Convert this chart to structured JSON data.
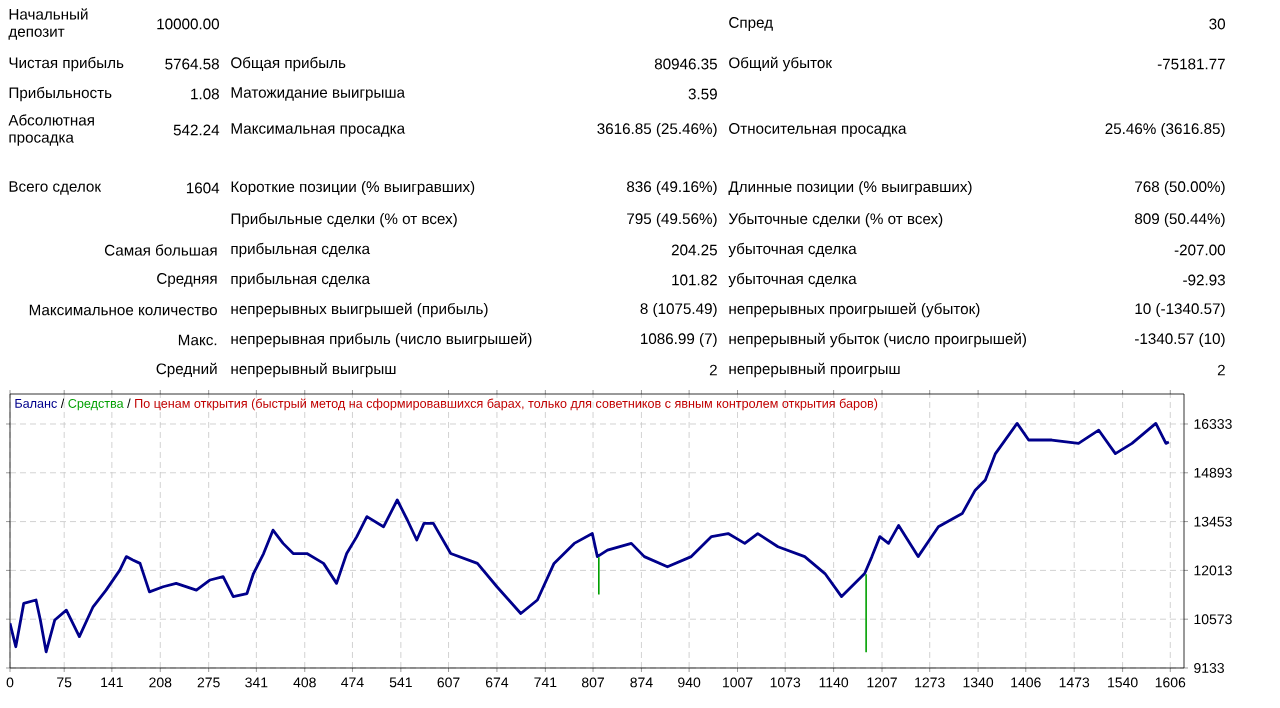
{
  "chart_data": {
    "type": "line",
    "series": [
      {
        "name": "Баланс",
        "color": "#00008b",
        "x": [
          0,
          8,
          19,
          36,
          42,
          50,
          62,
          78,
          96,
          115,
          133,
          152,
          161,
          170,
          180,
          193,
          212,
          230,
          258,
          277,
          295,
          309,
          328,
          337,
          351,
          364,
          378,
          392,
          411,
          434,
          452,
          466,
          480,
          494,
          517,
          536,
          550,
          563,
          573,
          586,
          610,
          647,
          674,
          707,
          730,
          753,
          781,
          806,
          813,
          827,
          860,
          878,
          910,
          943,
          971,
          994,
          1017,
          1035,
          1063,
          1100,
          1128,
          1151,
          1183,
          1193,
          1204,
          1216,
          1230,
          1257,
          1285,
          1318,
          1336,
          1350,
          1364,
          1394,
          1410,
          1442,
          1479,
          1507,
          1530,
          1553,
          1586,
          1600,
          1604
        ],
        "values": [
          10450,
          9760,
          11040,
          11140,
          10550,
          9610,
          10550,
          10840,
          10060,
          10940,
          11430,
          12020,
          12420,
          12320,
          12220,
          11380,
          11530,
          11630,
          11430,
          11730,
          11830,
          11240,
          11330,
          11920,
          12510,
          13200,
          12810,
          12510,
          12510,
          12220,
          11630,
          12510,
          13010,
          13600,
          13300,
          14090,
          13500,
          12910,
          13400,
          13400,
          12510,
          12220,
          11530,
          10740,
          11140,
          12220,
          12810,
          13100,
          12420,
          12610,
          12810,
          12420,
          12120,
          12420,
          13010,
          13100,
          12810,
          13100,
          12710,
          12420,
          11920,
          11240,
          11920,
          12420,
          13010,
          12810,
          13340,
          12420,
          13300,
          13690,
          14380,
          14680,
          15460,
          16350,
          15860,
          15860,
          15760,
          16150,
          15460,
          15760,
          16350,
          15760,
          15800
        ]
      },
      {
        "name": "Средства",
        "color": "#00a000",
        "x": [
          815,
          815,
          1000,
          1185,
          1185
        ],
        "values": [
          12400,
          11300,
          null,
          11900,
          9600
        ]
      }
    ],
    "xlim": [
      0,
      1625
    ],
    "ylim": [
      9133,
      17218
    ],
    "xticks": [
      0,
      75,
      141,
      208,
      275,
      341,
      408,
      474,
      541,
      607,
      674,
      741,
      807,
      874,
      940,
      1007,
      1073,
      1140,
      1207,
      1273,
      1340,
      1406,
      1473,
      1540,
      1606
    ],
    "yticks": [
      9133,
      10573,
      12013,
      13453,
      14893,
      16333
    ],
    "grid": true,
    "legend": "top left",
    "marker": "none",
    "line_style": "solid",
    "annotations": [
      "/",
      "/",
      "По ценам открытия (быстрый метод на сформировавшихся барах, только для советников с явным контролем открытия баров)",
      "Начальный депозит",
      "10000.00",
      "Спред",
      "30",
      "Чистая прибыль",
      "5764.58",
      "Общая прибыль",
      "80946.35",
      "Общий убыток",
      "-75181.77",
      "Прибыльность",
      "1.08",
      "Матожидание выигрыша",
      "3.59",
      "Абсолютная просадка",
      "542.24",
      "Максимальная просадка",
      "3616.85 (25.46%)",
      "Относительная просадка",
      "25.46% (3616.85)",
      "Всего сделок",
      "1604",
      "Короткие позиции (% выигравших)",
      "836 (49.16%)",
      "Длинные позиции (% выигравших)",
      "768 (50.00%)",
      "Прибыльные сделки (% от всех)",
      "795 (49.56%)",
      "Убыточные сделки (% от всех)",
      "809 (50.44%)",
      "Самая большая",
      "прибыльная сделка",
      "204.25",
      "убыточная сделка",
      "-207.00",
      "Средняя",
      "прибыльная сделка",
      "101.82",
      "убыточная сделка",
      "-92.93",
      "Максимальное количество",
      "непрерывных выигрышей (прибыль)",
      "8 (1075.49)",
      "непрерывных проигрышей (убыток)",
      "10 (-1340.57)",
      "Макс.",
      "непрерывная прибыль (число выигрышей)",
      "1086.99 (7)",
      "непрерывный убыток (число проигрышей)",
      "-1340.57 (10)",
      "Средний",
      "непрерывный выигрыш",
      "2",
      "непрерывный проигрыш",
      "2"
    ]
  }
}
